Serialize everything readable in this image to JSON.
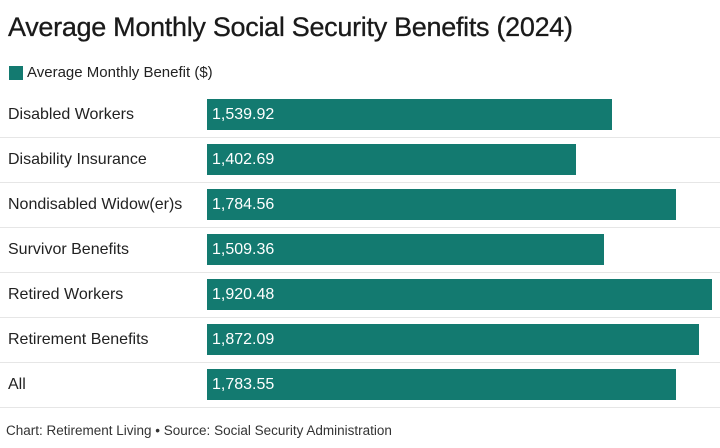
{
  "title": "Average Monthly Social Security Benefits (2024)",
  "legend": {
    "label": "Average Monthly Benefit ($)",
    "color": "#137a70"
  },
  "footer": "Chart: Retirement Living • Source: Social Security Administration",
  "chart_data": {
    "type": "bar",
    "orientation": "horizontal",
    "title": "Average Monthly Social Security Benefits (2024)",
    "categories": [
      "Disabled Workers",
      "Disability Insurance",
      "Nondisabled Widow(er)s",
      "Survivor Benefits",
      "Retired Workers",
      "Retirement Benefits",
      "All"
    ],
    "series": [
      {
        "name": "Average Monthly Benefit ($)",
        "color": "#137a70",
        "values": [
          1539.92,
          1402.69,
          1784.56,
          1509.36,
          1920.48,
          1872.09,
          1783.55
        ],
        "labels": [
          "1,539.92",
          "1,402.69",
          "1,784.56",
          "1,509.36",
          "1,920.48",
          "1,872.09",
          "1,783.55"
        ]
      }
    ],
    "xlim": [
      0,
      1920.48
    ],
    "grid": false,
    "legend_position": "top-left",
    "bar_color": "#137a70"
  }
}
